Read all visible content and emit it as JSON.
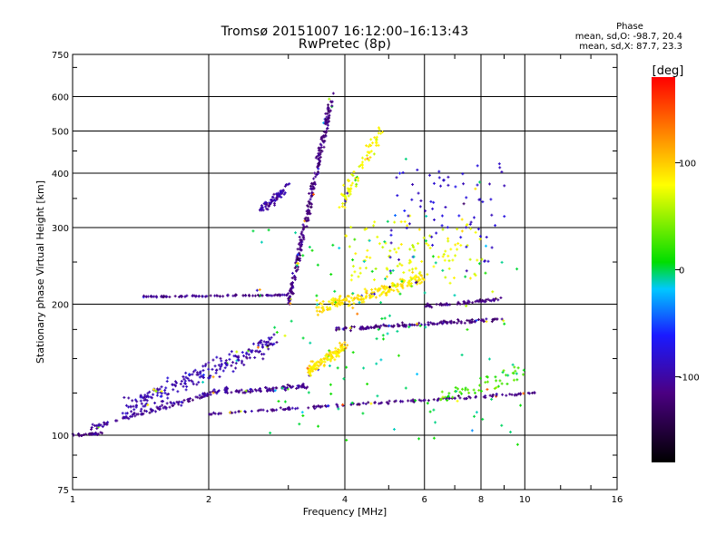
{
  "chart_data": {
    "type": "scatter",
    "title": "Tromsø 20151007 16:12:00–16:13:43",
    "subtitle": "RwPretec (8p)",
    "xlabel": "Frequency [MHz]",
    "ylabel": "Stationary phase Virtual Height [km]",
    "xscale": "log",
    "yscale": "log",
    "xlim": [
      1,
      16
    ],
    "ylim": [
      75,
      750
    ],
    "xticks": [
      1,
      2,
      4,
      6,
      8,
      10,
      16
    ],
    "xtick_labels": [
      "1",
      "2",
      "4",
      "6",
      "8",
      "10",
      "16"
    ],
    "yticks": [
      75,
      100,
      200,
      300,
      400,
      500,
      600,
      750
    ],
    "ytick_labels": [
      "75",
      "100",
      "200",
      "300",
      "400",
      "500",
      "600",
      "750"
    ],
    "grid": true,
    "phase_header": "Phase",
    "phase_stats": [
      "mean, sd,O: -98.7, 20.4",
      "mean, sd,X:  87.7, 23.3"
    ],
    "colorbar": {
      "label": "[deg]",
      "range": [
        -180,
        180
      ],
      "tick_values": [
        -100,
        0,
        100
      ],
      "tick_labels": [
        "-100",
        "0",
        "100"
      ]
    },
    "clusters": [
      {
        "x": [
          1.0,
          1.15
        ],
        "y": [
          100,
          101
        ],
        "phase": -110,
        "n": 25,
        "spread": 0.01
      },
      {
        "x": [
          1.1,
          2.2
        ],
        "y": [
          104,
          128
        ],
        "phase": -105,
        "n": 120,
        "spread": 0.02
      },
      {
        "x": [
          1.3,
          2.8
        ],
        "y": [
          115,
          165
        ],
        "phase": -95,
        "n": 230,
        "spread": 0.07
      },
      {
        "x": [
          2.2,
          3.3
        ],
        "y": [
          125,
          130
        ],
        "phase": -110,
        "n": 80,
        "spread": 0.02
      },
      {
        "x": [
          1.4,
          3.0
        ],
        "y": [
          208,
          210
        ],
        "phase": -110,
        "n": 90,
        "spread": 0.006
      },
      {
        "x": [
          2.0,
          10.5
        ],
        "y": [
          112,
          125
        ],
        "phase": -110,
        "n": 150,
        "spread": 0.01
      },
      {
        "x": [
          3.0,
          3.75
        ],
        "y": [
          200,
          600
        ],
        "phase": -115,
        "n": 260,
        "spread": 0.03
      },
      {
        "x": [
          2.6,
          3.0
        ],
        "y": [
          330,
          370
        ],
        "phase": -100,
        "n": 70,
        "spread": 0.04
      },
      {
        "x": [
          3.8,
          9.0
        ],
        "y": [
          175,
          185
        ],
        "phase": -115,
        "n": 140,
        "spread": 0.015
      },
      {
        "x": [
          3.5,
          6.0
        ],
        "y": [
          195,
          230
        ],
        "phase": 90,
        "n": 200,
        "spread": 0.05
      },
      {
        "x": [
          3.3,
          4.0
        ],
        "y": [
          140,
          160
        ],
        "phase": 90,
        "n": 120,
        "spread": 0.05
      },
      {
        "x": [
          4.0,
          8.0
        ],
        "y": [
          230,
          310
        ],
        "phase": 75,
        "n": 110,
        "spread": 0.1
      },
      {
        "x": [
          3.9,
          4.8
        ],
        "y": [
          340,
          500
        ],
        "phase": 80,
        "n": 80,
        "spread": 0.08
      },
      {
        "x": [
          5.0,
          9.0
        ],
        "y": [
          260,
          420
        ],
        "phase": -80,
        "n": 80,
        "spread": 0.12
      },
      {
        "x": [
          6.0,
          8.8
        ],
        "y": [
          198,
          205
        ],
        "phase": -115,
        "n": 60,
        "spread": 0.015
      },
      {
        "x": [
          6.5,
          10.0
        ],
        "y": [
          120,
          140
        ],
        "phase": 30,
        "n": 50,
        "spread": 0.08
      },
      {
        "x": [
          2.5,
          10.0
        ],
        "y": [
          100,
          300
        ],
        "phase": 0,
        "n": 120,
        "spread": 0.2
      }
    ]
  }
}
